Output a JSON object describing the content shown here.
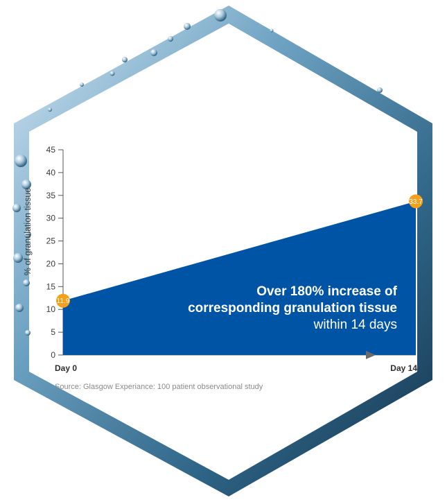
{
  "chart_data": {
    "type": "area",
    "x": [
      "Day 0",
      "Day 14"
    ],
    "series": [
      {
        "values": [
          11.9,
          33.7
        ]
      }
    ],
    "ylabel": "% of granulation tissue",
    "ylim": [
      0,
      45
    ],
    "yticks": [
      "0",
      "5",
      "10",
      "15",
      "20",
      "25",
      "30",
      "35",
      "40",
      "45"
    ],
    "data_labels": [
      "11.9",
      "33.7"
    ],
    "grid": false,
    "annotation": {
      "line1": "Over 180% increase of",
      "line2": "corresponding granulation tissue",
      "line3": "within 14 days"
    },
    "source": "Source: Glasgow Experiance: 100 patient observational study"
  },
  "colors": {
    "area": "#0054a6",
    "badge": "#f5a01a",
    "frame_dark": "#1b3d57",
    "frame_light": "#6fa3c3",
    "background": "#ffffff"
  }
}
